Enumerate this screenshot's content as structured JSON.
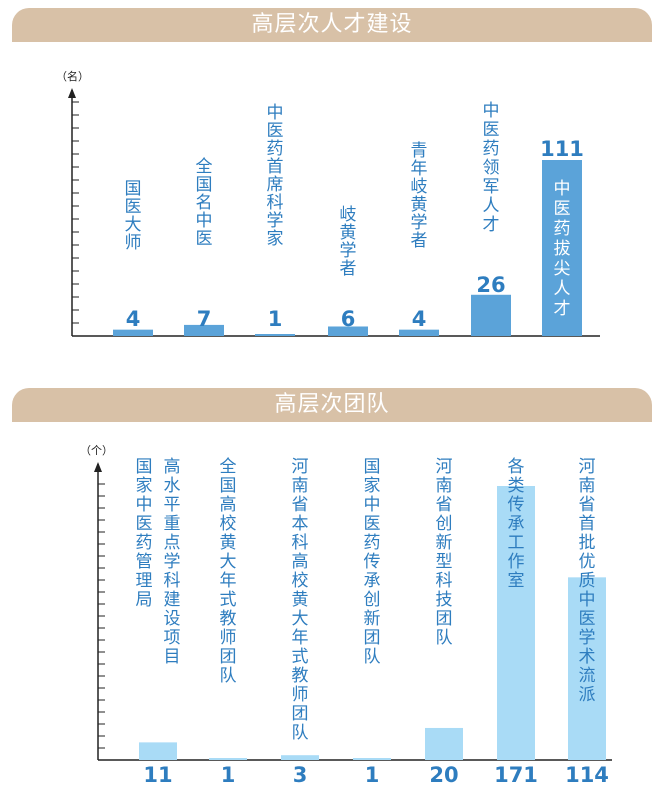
{
  "sections": [
    {
      "title": "高层次人才建设"
    },
    {
      "title": "高层次团队"
    }
  ],
  "chart_data": [
    {
      "type": "bar",
      "title": "高层次人才建设",
      "unit_label": "（名）",
      "color": "#5ba3d9",
      "categories": [
        "国医大师",
        "全国名中医",
        "中医药首席科学家",
        "岐黄学者",
        "青年岐黄学者",
        "中医药领军人才",
        "中医药拔尖人才"
      ],
      "values": [
        4,
        7,
        1,
        6,
        4,
        26,
        111
      ],
      "ylim": [
        0,
        125
      ]
    },
    {
      "type": "bar",
      "title": "高层次团队",
      "unit_label": "（个）",
      "color": "#a9dbf6",
      "categories": [
        "国家中医药管理局高水平重点学科建设项目",
        "全国高校黄大年式教师团队",
        "河南省本科高校黄大年式教师团队",
        "国家中医药传承创新团队",
        "河南省创新型科技团队",
        "各类传承工作室",
        "河南省首批优质中医学术流派"
      ],
      "values": [
        11,
        1,
        3,
        1,
        20,
        171,
        114
      ],
      "ylim": [
        0,
        180
      ]
    }
  ]
}
